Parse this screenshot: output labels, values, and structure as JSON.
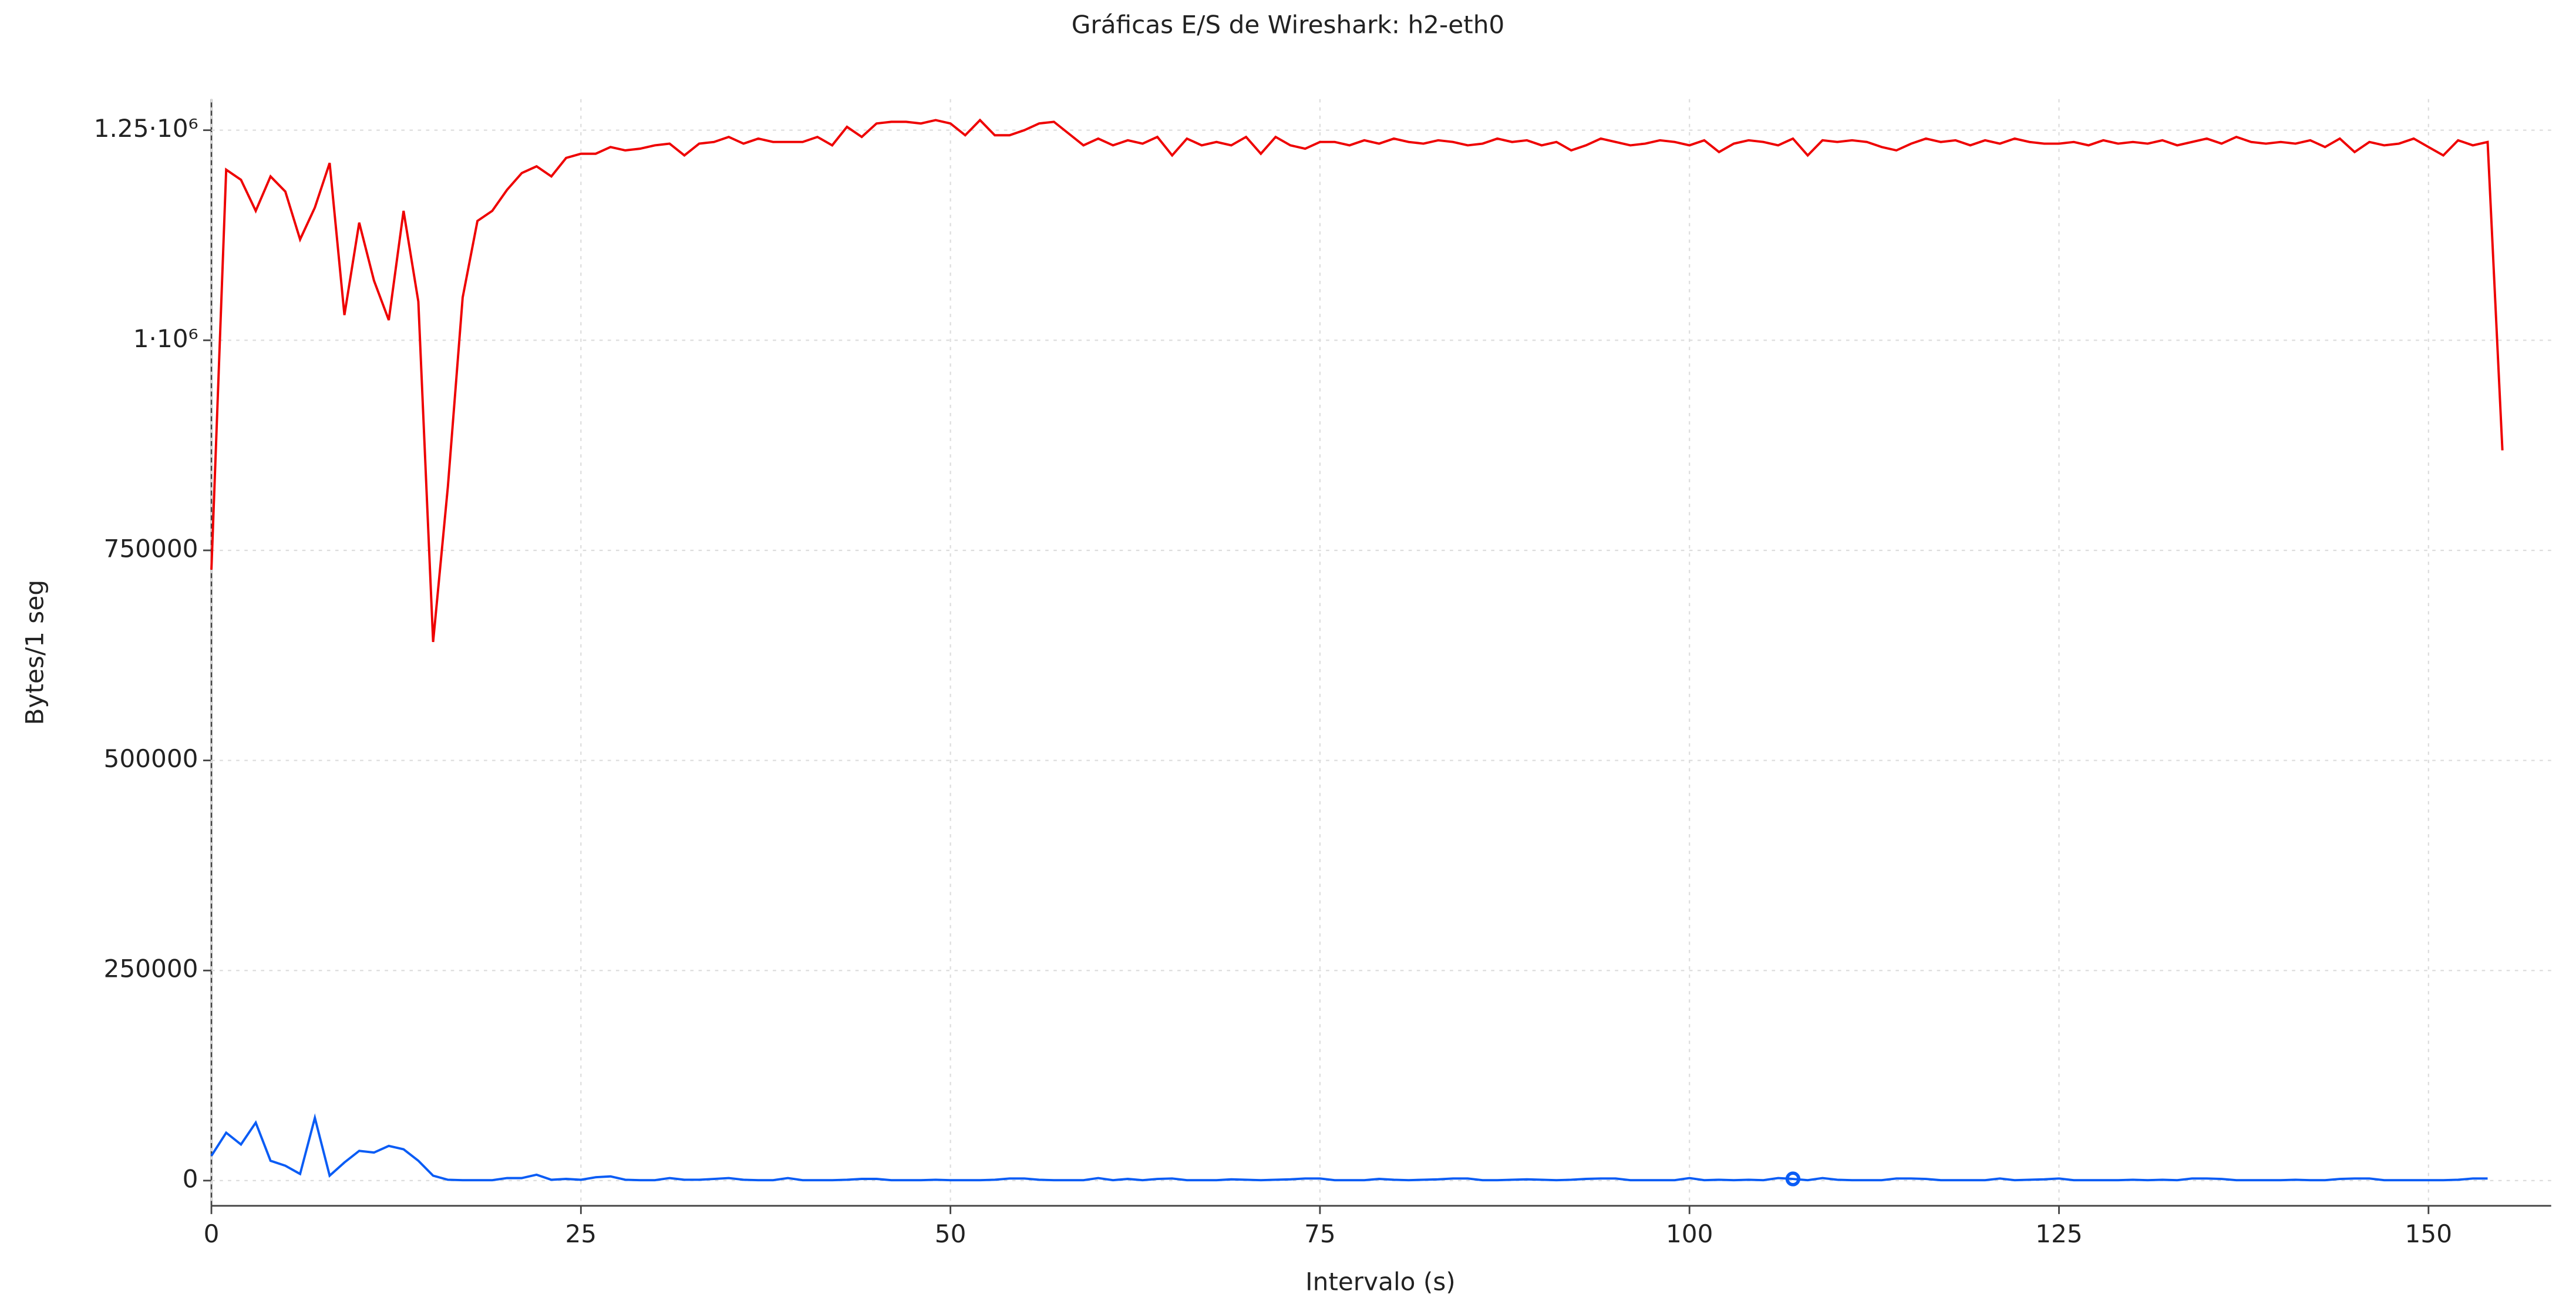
{
  "chart_data": {
    "type": "line",
    "title": "Gráficas E/S de Wireshark: h2-eth0",
    "x_label": "Intervalo (s)",
    "y_label": "Bytes/1 seg",
    "xlim": [
      0,
      158.3
    ],
    "xticks": [
      0,
      25,
      50,
      75,
      100,
      125,
      150
    ],
    "ylim": [
      -30000,
      1287000
    ],
    "yticks": [
      0,
      250000,
      500000,
      750000,
      {
        "value": 1000000,
        "label": "1·10⁶"
      },
      {
        "value": 1250000,
        "label": "1.25·10⁶"
      }
    ],
    "grid": true,
    "x": [
      0,
      1,
      2,
      3,
      4,
      5,
      6,
      7,
      8,
      9,
      10,
      11,
      12,
      13,
      14,
      15,
      16,
      17,
      18,
      19,
      20,
      21,
      22,
      23,
      24,
      25,
      26,
      27,
      28,
      29,
      30,
      31,
      32,
      33,
      34,
      35,
      36,
      37,
      38,
      39,
      40,
      41,
      42,
      43,
      44,
      45,
      46,
      47,
      48,
      49,
      50,
      51,
      52,
      53,
      54,
      55,
      56,
      57,
      58,
      59,
      60,
      61,
      62,
      63,
      64,
      65,
      66,
      67,
      68,
      69,
      70,
      71,
      72,
      73,
      74,
      75,
      76,
      77,
      78,
      79,
      80,
      81,
      82,
      83,
      84,
      85,
      86,
      87,
      88,
      89,
      90,
      91,
      92,
      93,
      94,
      95,
      96,
      97,
      98,
      99,
      100,
      101,
      102,
      103,
      104,
      105,
      106,
      107,
      108,
      109,
      110,
      111,
      112,
      113,
      114,
      115,
      116,
      117,
      118,
      119,
      120,
      121,
      122,
      123,
      124,
      125,
      126,
      127,
      128,
      129,
      130,
      131,
      132,
      133,
      134,
      135,
      136,
      137,
      138,
      139,
      140,
      141,
      142,
      143,
      144,
      145,
      146,
      147,
      148,
      149,
      150,
      151,
      152,
      153,
      154,
      155
    ],
    "series": [
      {
        "color": "#ee0000",
        "values": [
          727000,
          1203000,
          1191000,
          1154000,
          1195000,
          1177000,
          1120000,
          1158000,
          1211000,
          1030000,
          1140000,
          1071000,
          1024000,
          1154000,
          1046000,
          641000,
          826000,
          1051000,
          1142000,
          1154000,
          1179000,
          1199000,
          1207000,
          1195000,
          1217000,
          1222000,
          1222000,
          1230000,
          1226000,
          1228000,
          1232000,
          1234000,
          1220000,
          1234000,
          1236000,
          1242000,
          1234000,
          1240000,
          1236000,
          1236000,
          1236000,
          1242000,
          1232000,
          1254000,
          1242000,
          1258000,
          1260000,
          1260000,
          1258000,
          1262000,
          1258000,
          1244000,
          1262000,
          1244000,
          1244000,
          1250000,
          1258000,
          1260000,
          1246000,
          1232000,
          1240000,
          1232000,
          1238000,
          1234000,
          1242000,
          1220000,
          1240000,
          1232000,
          1236000,
          1232000,
          1242000,
          1222000,
          1242000,
          1232000,
          1228000,
          1236000,
          1236000,
          1232000,
          1238000,
          1234000,
          1240000,
          1236000,
          1234000,
          1238000,
          1236000,
          1232000,
          1234000,
          1240000,
          1236000,
          1238000,
          1232000,
          1236000,
          1226000,
          1232000,
          1240000,
          1236000,
          1232000,
          1234000,
          1238000,
          1236000,
          1232000,
          1238000,
          1224000,
          1234000,
          1238000,
          1236000,
          1232000,
          1240000,
          1220000,
          1238000,
          1236000,
          1238000,
          1236000,
          1230000,
          1226000,
          1234000,
          1240000,
          1236000,
          1238000,
          1232000,
          1238000,
          1234000,
          1240000,
          1236000,
          1234000,
          1234000,
          1236000,
          1232000,
          1238000,
          1234000,
          1236000,
          1234000,
          1238000,
          1232000,
          1236000,
          1240000,
          1234000,
          1242000,
          1236000,
          1234000,
          1236000,
          1234000,
          1238000,
          1230000,
          1240000,
          1224000,
          1236000,
          1232000,
          1234000,
          1240000,
          1230000,
          1220000,
          1238000,
          1232000,
          1236000,
          869000
        ]
      },
      {
        "color": "#0a5cf5",
        "values": [
          29500,
          57000,
          43000,
          69000,
          23600,
          17700,
          7900,
          74700,
          5900,
          21600,
          35400,
          33400,
          41300,
          37300,
          23600,
          5900,
          1000,
          500,
          500,
          500,
          3000,
          3000,
          7000,
          1000,
          2000,
          1000,
          4000,
          5000,
          1000,
          500,
          500,
          3000,
          1000,
          1000,
          2000,
          3000,
          1000,
          500,
          500,
          3000,
          500,
          500,
          500,
          1000,
          2000,
          2000,
          500,
          500,
          500,
          1000,
          500,
          500,
          500,
          1000,
          2500,
          2500,
          1000,
          500,
          500,
          500,
          3000,
          500,
          2000,
          500,
          2000,
          2500,
          500,
          500,
          500,
          1500,
          1000,
          500,
          1000,
          1500,
          2500,
          2500,
          500,
          500,
          500,
          2000,
          1000,
          500,
          1000,
          1500,
          2500,
          2500,
          500,
          500,
          1000,
          1500,
          1000,
          500,
          1000,
          2000,
          2500,
          2500,
          500,
          500,
          500,
          500,
          3000,
          500,
          1000,
          500,
          1000,
          500,
          3000,
          2000,
          500,
          3000,
          1000,
          500,
          500,
          500,
          2500,
          2500,
          2000,
          500,
          500,
          500,
          500,
          2500,
          500,
          1000,
          1500,
          2500,
          500,
          500,
          500,
          500,
          1000,
          500,
          1000,
          500,
          2500,
          2500,
          2000,
          500,
          500,
          500,
          500,
          1000,
          500,
          500,
          2000,
          2500,
          2500,
          500,
          500,
          500,
          500,
          500,
          1000,
          2500,
          2500,
          null
        ]
      }
    ]
  }
}
